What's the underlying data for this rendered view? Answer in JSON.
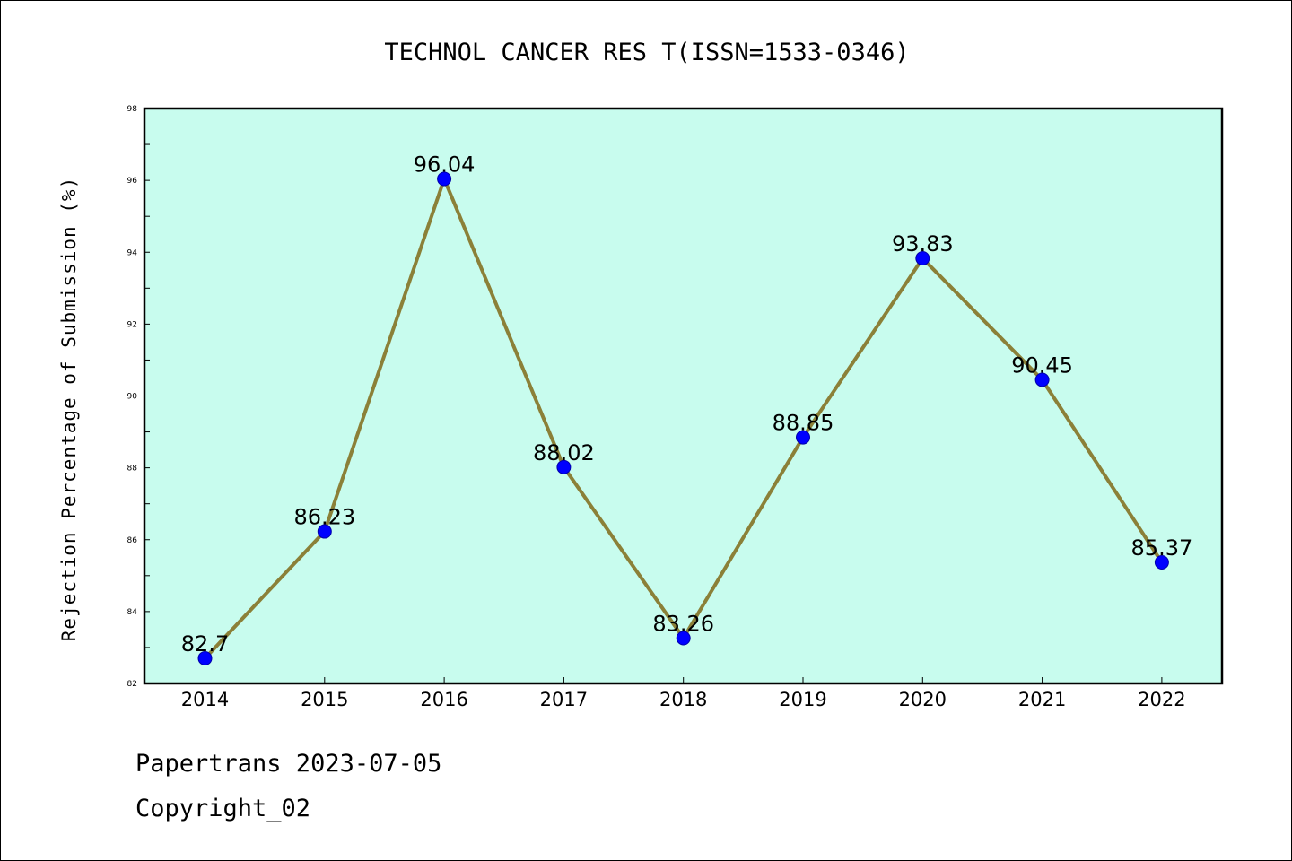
{
  "chart_data": {
    "type": "line",
    "title": "TECHNOL CANCER RES T(ISSN=1533-0346)",
    "xlabel": "",
    "ylabel": "Rejection Percentage of Submission (%)",
    "categories": [
      "2014",
      "2015",
      "2016",
      "2017",
      "2018",
      "2019",
      "2020",
      "2021",
      "2022"
    ],
    "series": [
      {
        "values": [
          82.7,
          86.23,
          96.04,
          88.02,
          83.26,
          88.85,
          93.83,
          90.45,
          85.37
        ],
        "labels": [
          "82.7",
          "86.23",
          "96.04",
          "88.02",
          "83.26",
          "88.85",
          "93.83",
          "90.45",
          "85.37"
        ],
        "line_color": "#8b8038",
        "marker_color": "#0000ff"
      }
    ],
    "ylim": [
      82,
      98
    ],
    "yticks": [
      "82",
      "84",
      "86",
      "88",
      "90",
      "92",
      "94",
      "96",
      "98"
    ],
    "plot_background": "#c8fcee",
    "grid": false,
    "legend": "none"
  },
  "footer": {
    "line1": "Papertrans 2023-07-05",
    "line2": "Copyright_02"
  }
}
